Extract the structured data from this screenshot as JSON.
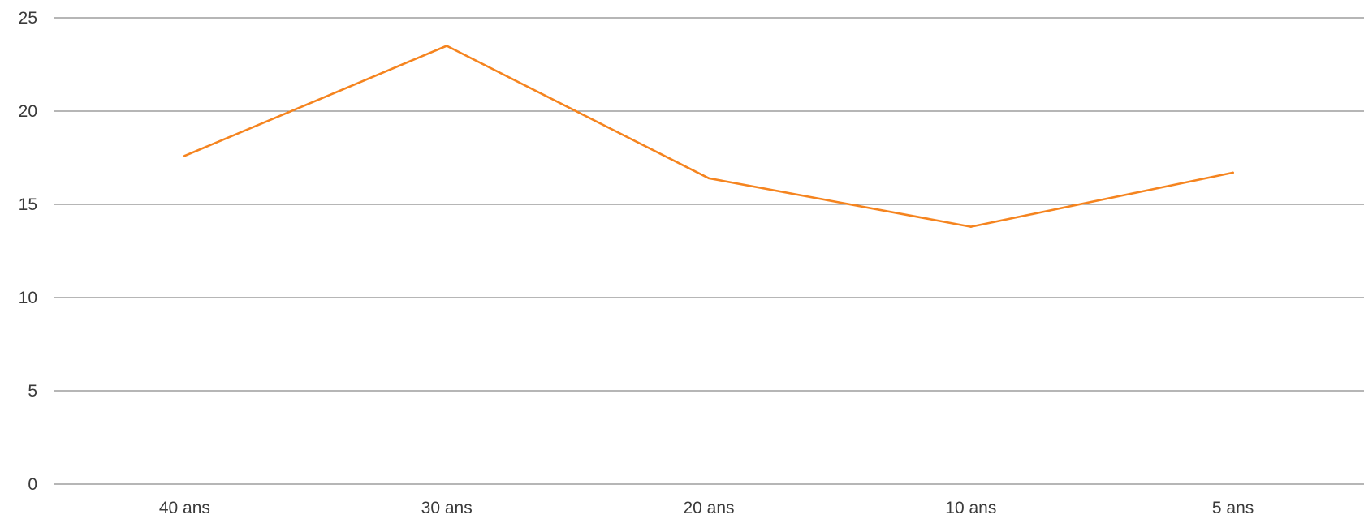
{
  "chart_data": {
    "type": "line",
    "categories": [
      "40 ans",
      "30 ans",
      "20 ans",
      "10 ans",
      "5 ans"
    ],
    "series": [
      {
        "values": [
          17.6,
          23.5,
          16.4,
          13.8,
          16.7
        ],
        "color": "#f5841f"
      }
    ],
    "ylim": [
      0,
      25
    ],
    "yticks": [
      0,
      5,
      10,
      15,
      20,
      25
    ],
    "grid": true,
    "legend": "none",
    "title": "",
    "xlabel": "",
    "ylabel": ""
  }
}
